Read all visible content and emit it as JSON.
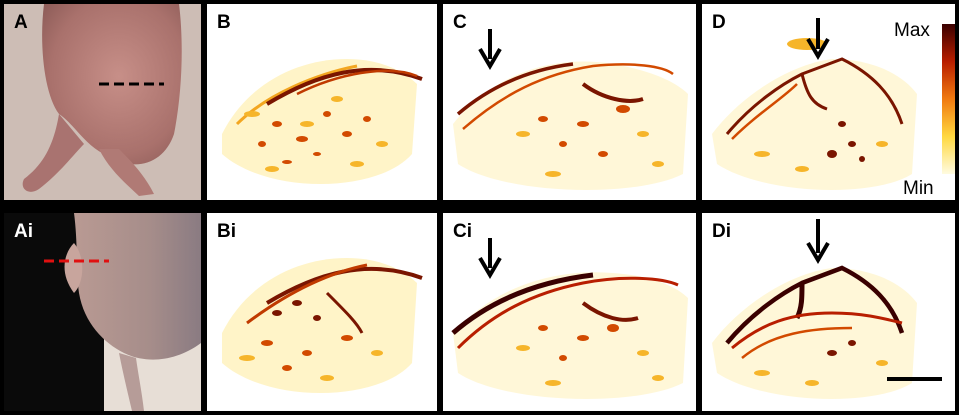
{
  "panels": {
    "A": {
      "label": "A"
    },
    "B": {
      "label": "B"
    },
    "C": {
      "label": "C"
    },
    "D": {
      "label": "D"
    },
    "Ai": {
      "label": "Ai"
    },
    "Bi": {
      "label": "Bi"
    },
    "Ci": {
      "label": "Ci"
    },
    "Di": {
      "label": "Di"
    }
  },
  "colorbar": {
    "max_label": "Max",
    "min_label": "Min",
    "colors": [
      "#3a0000",
      "#b81e00",
      "#f07a10",
      "#ffd840",
      "#fffbe0"
    ]
  },
  "colors": {
    "hot_dark": "#5a0a00",
    "hot_mid": "#d24a00",
    "hot_light": "#f6b52a",
    "hot_pale": "#ffe27a",
    "dashed_black": "#000000",
    "dashed_red": "#e01010"
  }
}
